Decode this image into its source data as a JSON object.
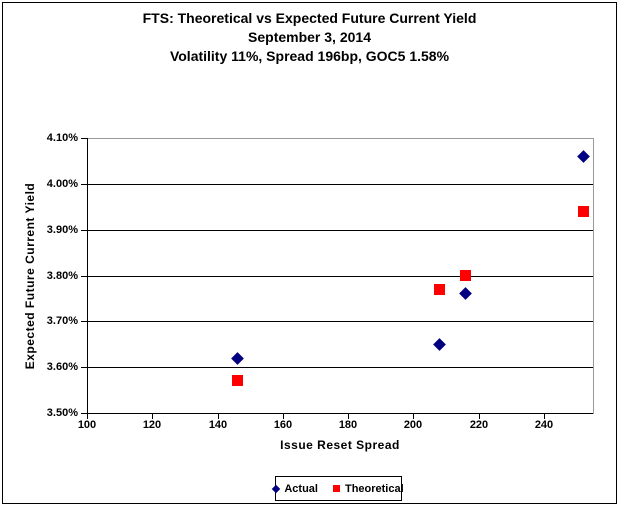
{
  "chart": {
    "background": "#FFFFFF",
    "border_color": "#000000",
    "gridline_color": "#000000",
    "plot_border_right_color": "#999999",
    "title_lines": [
      "FTS: Theoretical vs Expected Future Current Yield",
      "September 3, 2014",
      "Volatility 11%, Spread 196bp, GOC5 1.58%"
    ]
  },
  "chart_data": {
    "type": "scatter",
    "title": "FTS: Theoretical vs Expected Future Current Yield",
    "subtitle_date": "September 3, 2014",
    "subtitle_params": "Volatility 11%, Spread 196bp, GOC5 1.58%",
    "xlabel": "Issue Reset Spread",
    "ylabel": "Expected Future Current Yield",
    "xlim": [
      100,
      255
    ],
    "ylim": [
      3.5,
      4.1
    ],
    "grid": true,
    "legend_position": "bottom",
    "x_ticks": [
      100,
      120,
      140,
      160,
      180,
      200,
      220,
      240
    ],
    "y_ticks": [
      {
        "v": 4.1,
        "label": "4.10%"
      },
      {
        "v": 4.0,
        "label": "4.00%"
      },
      {
        "v": 3.9,
        "label": "3.90%"
      },
      {
        "v": 3.8,
        "label": "3.80%"
      },
      {
        "v": 3.7,
        "label": "3.70%"
      },
      {
        "v": 3.6,
        "label": "3.60%"
      },
      {
        "v": 3.5,
        "label": "3.50%"
      }
    ],
    "y_unit": "%",
    "series": [
      {
        "name": "Actual",
        "marker": "diamond",
        "color": "#000080",
        "points": [
          {
            "x": 146,
            "y": 3.62
          },
          {
            "x": 208,
            "y": 3.65
          },
          {
            "x": 216,
            "y": 3.76
          },
          {
            "x": 252,
            "y": 4.06
          }
        ]
      },
      {
        "name": "Theoretical",
        "marker": "square",
        "color": "#FF0000",
        "points": [
          {
            "x": 146,
            "y": 3.57
          },
          {
            "x": 208,
            "y": 3.77
          },
          {
            "x": 216,
            "y": 3.8
          },
          {
            "x": 252,
            "y": 3.94
          }
        ]
      }
    ]
  }
}
